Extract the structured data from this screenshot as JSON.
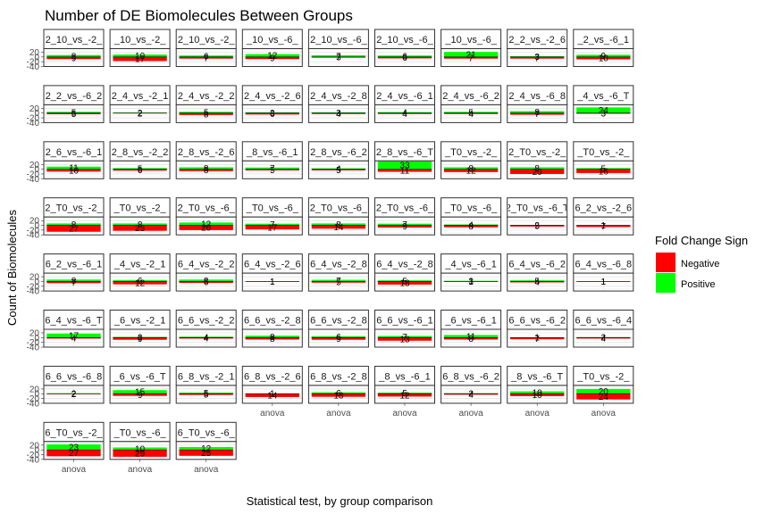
{
  "chart_data": {
    "type": "bar",
    "title": "Number of DE Biomolecules Between Groups",
    "xlabel": "Statistical test, by group comparison",
    "ylabel": "Count of Biomolecules",
    "ylim": [
      -40,
      35
    ],
    "y_ticks": [
      20,
      0,
      -20,
      -40
    ],
    "x_category": "anova",
    "legend": {
      "title": "Fold Change Sign",
      "placement": "right",
      "entries": [
        {
          "name": "Negative",
          "color": "#FF0000"
        },
        {
          "name": "Positive",
          "color": "#00FF00"
        }
      ]
    },
    "grid": true,
    "panels": [
      {
        "label": "2_10_vs_-2_",
        "pos": 8,
        "neg": 9
      },
      {
        "label": "_10_vs_-2_",
        "pos": 10,
        "neg": 17
      },
      {
        "label": "2_10_vs_-2_",
        "pos": 6,
        "neg": 7
      },
      {
        "label": "_10_vs_-6_",
        "pos": 12,
        "neg": 9
      },
      {
        "label": "2_10_vs_-6_",
        "pos": 7,
        "neg": 3
      },
      {
        "label": "2_10_vs_-6_",
        "pos": 6,
        "neg": 6
      },
      {
        "label": "_10_vs_-6_",
        "pos": 21,
        "neg": 7
      },
      {
        "label": "2_2_vs_-2_6",
        "pos": 3,
        "neg": 7
      },
      {
        "label": "_2_vs_-6_1",
        "pos": 9,
        "neg": 10
      },
      {
        "label": "2_2_vs_-6_2",
        "pos": 5,
        "neg": 5
      },
      {
        "label": "2_4_vs_-2_1",
        "pos": 2,
        "neg": 2
      },
      {
        "label": "2_4_vs_-2_2",
        "pos": 5,
        "neg": 8
      },
      {
        "label": "2_4_vs_-2_6",
        "pos": 3,
        "neg": 6
      },
      {
        "label": "2_4_vs_-2_8",
        "pos": 3,
        "neg": 4
      },
      {
        "label": "2_4_vs_-6_1",
        "pos": 4,
        "neg": 4
      },
      {
        "label": "2_4_vs_-6_2",
        "pos": 5,
        "neg": 4
      },
      {
        "label": "2_4_vs_-6_8",
        "pos": 8,
        "neg": 7
      },
      {
        "label": "_4_vs_-6_T",
        "pos": 24,
        "neg": 3
      },
      {
        "label": "2_6_vs_-6_1",
        "pos": 11,
        "neg": 10
      },
      {
        "label": "2_8_vs_-2_2",
        "pos": 5,
        "neg": 6
      },
      {
        "label": "2_8_vs_-2_6",
        "pos": 8,
        "neg": 8
      },
      {
        "label": "_8_vs_-6_1",
        "pos": 7,
        "neg": 5
      },
      {
        "label": "2_8_vs_-6_2",
        "pos": 4,
        "neg": 5
      },
      {
        "label": "2_8_vs_-6_T",
        "pos": 33,
        "neg": 11
      },
      {
        "label": "_T0_vs_-2_",
        "pos": 8,
        "neg": 12
      },
      {
        "label": "2_T0_vs_-2_",
        "pos": 8,
        "neg": 20
      },
      {
        "label": "_T0_vs_-2_",
        "pos": 5,
        "neg": 16
      },
      {
        "label": "2_T0_vs_-2_",
        "pos": 8,
        "neg": 27
      },
      {
        "label": "_T0_vs_-2_",
        "pos": 8,
        "neg": 23
      },
      {
        "label": "2_T0_vs_-6_",
        "pos": 12,
        "neg": 20
      },
      {
        "label": "_T0_vs_-6_",
        "pos": 7,
        "neg": 17
      },
      {
        "label": "2_T0_vs_-6_",
        "pos": 8,
        "neg": 14
      },
      {
        "label": "2_T0_vs_-6_",
        "pos": 7,
        "neg": 9
      },
      {
        "label": "_T0_vs_-6_",
        "pos": 4,
        "neg": 8
      },
      {
        "label": "2_T0_vs_-6_T",
        "pos": 2,
        "neg": 5
      },
      {
        "label": "6_2_vs_-2_6",
        "pos": 1,
        "neg": 7
      },
      {
        "label": "6_2_vs_-6_1",
        "pos": 8,
        "neg": 7
      },
      {
        "label": "_4_vs_-2_1",
        "pos": 6,
        "neg": 12
      },
      {
        "label": "6_4_vs_-2_2",
        "pos": 8,
        "neg": 6
      },
      {
        "label": "6_4_vs_-2_6",
        "pos": 1,
        "neg": 1
      },
      {
        "label": "6_4_vs_-2_8",
        "pos": 7,
        "neg": 5
      },
      {
        "label": "6_4_vs_-2_8",
        "pos": 5,
        "neg": 13
      },
      {
        "label": "_4_vs_-6_1",
        "pos": 3,
        "neg": 1
      },
      {
        "label": "6_4_vs_-6_2",
        "pos": 5,
        "neg": 4
      },
      {
        "label": "6_4_vs_-6_8",
        "pos": 1,
        "neg": 1
      },
      {
        "label": "6_4_vs_-6_T",
        "pos": 17,
        "neg": 4
      },
      {
        "label": "_6_vs_-2_1",
        "pos": 3,
        "neg": 9
      },
      {
        "label": "6_6_vs_-2_2",
        "pos": 4,
        "neg": 4
      },
      {
        "label": "6_6_vs_-2_8",
        "pos": 8,
        "neg": 8
      },
      {
        "label": "6_6_vs_-2_8",
        "pos": 6,
        "neg": 9
      },
      {
        "label": "6_6_vs_-6_1",
        "pos": 7,
        "neg": 13
      },
      {
        "label": "_6_vs_-6_1",
        "pos": 11,
        "neg": 8
      },
      {
        "label": "6_6_vs_-6_2",
        "pos": 1,
        "neg": 7
      },
      {
        "label": "6_6_vs_-6_4",
        "pos": 2,
        "neg": 4
      },
      {
        "label": "6_6_vs_-6_8",
        "pos": 2,
        "neg": 2
      },
      {
        "label": "_6_vs_-6_T",
        "pos": 15,
        "neg": 9
      },
      {
        "label": "6_8_vs_-2_1",
        "pos": 5,
        "neg": 5
      },
      {
        "label": "6_8_vs_-2_6",
        "pos": 1,
        "neg": 14
      },
      {
        "label": "6_8_vs_-2_8",
        "pos": 6,
        "neg": 13
      },
      {
        "label": "_8_vs_-6_1",
        "pos": 5,
        "neg": 12
      },
      {
        "label": "6_8_vs_-6_2",
        "pos": 2,
        "neg": 4
      },
      {
        "label": "_8_vs_-6_T",
        "pos": 10,
        "neg": 10
      },
      {
        "label": "_T0_vs_-2_",
        "pos": 20,
        "neg": 24
      },
      {
        "label": "6_T0_vs_-2_",
        "pos": 23,
        "neg": 27
      },
      {
        "label": "_T0_vs_-6_",
        "pos": 10,
        "neg": 29
      },
      {
        "label": "6_T0_vs_-6_",
        "pos": 12,
        "neg": 25
      }
    ]
  }
}
